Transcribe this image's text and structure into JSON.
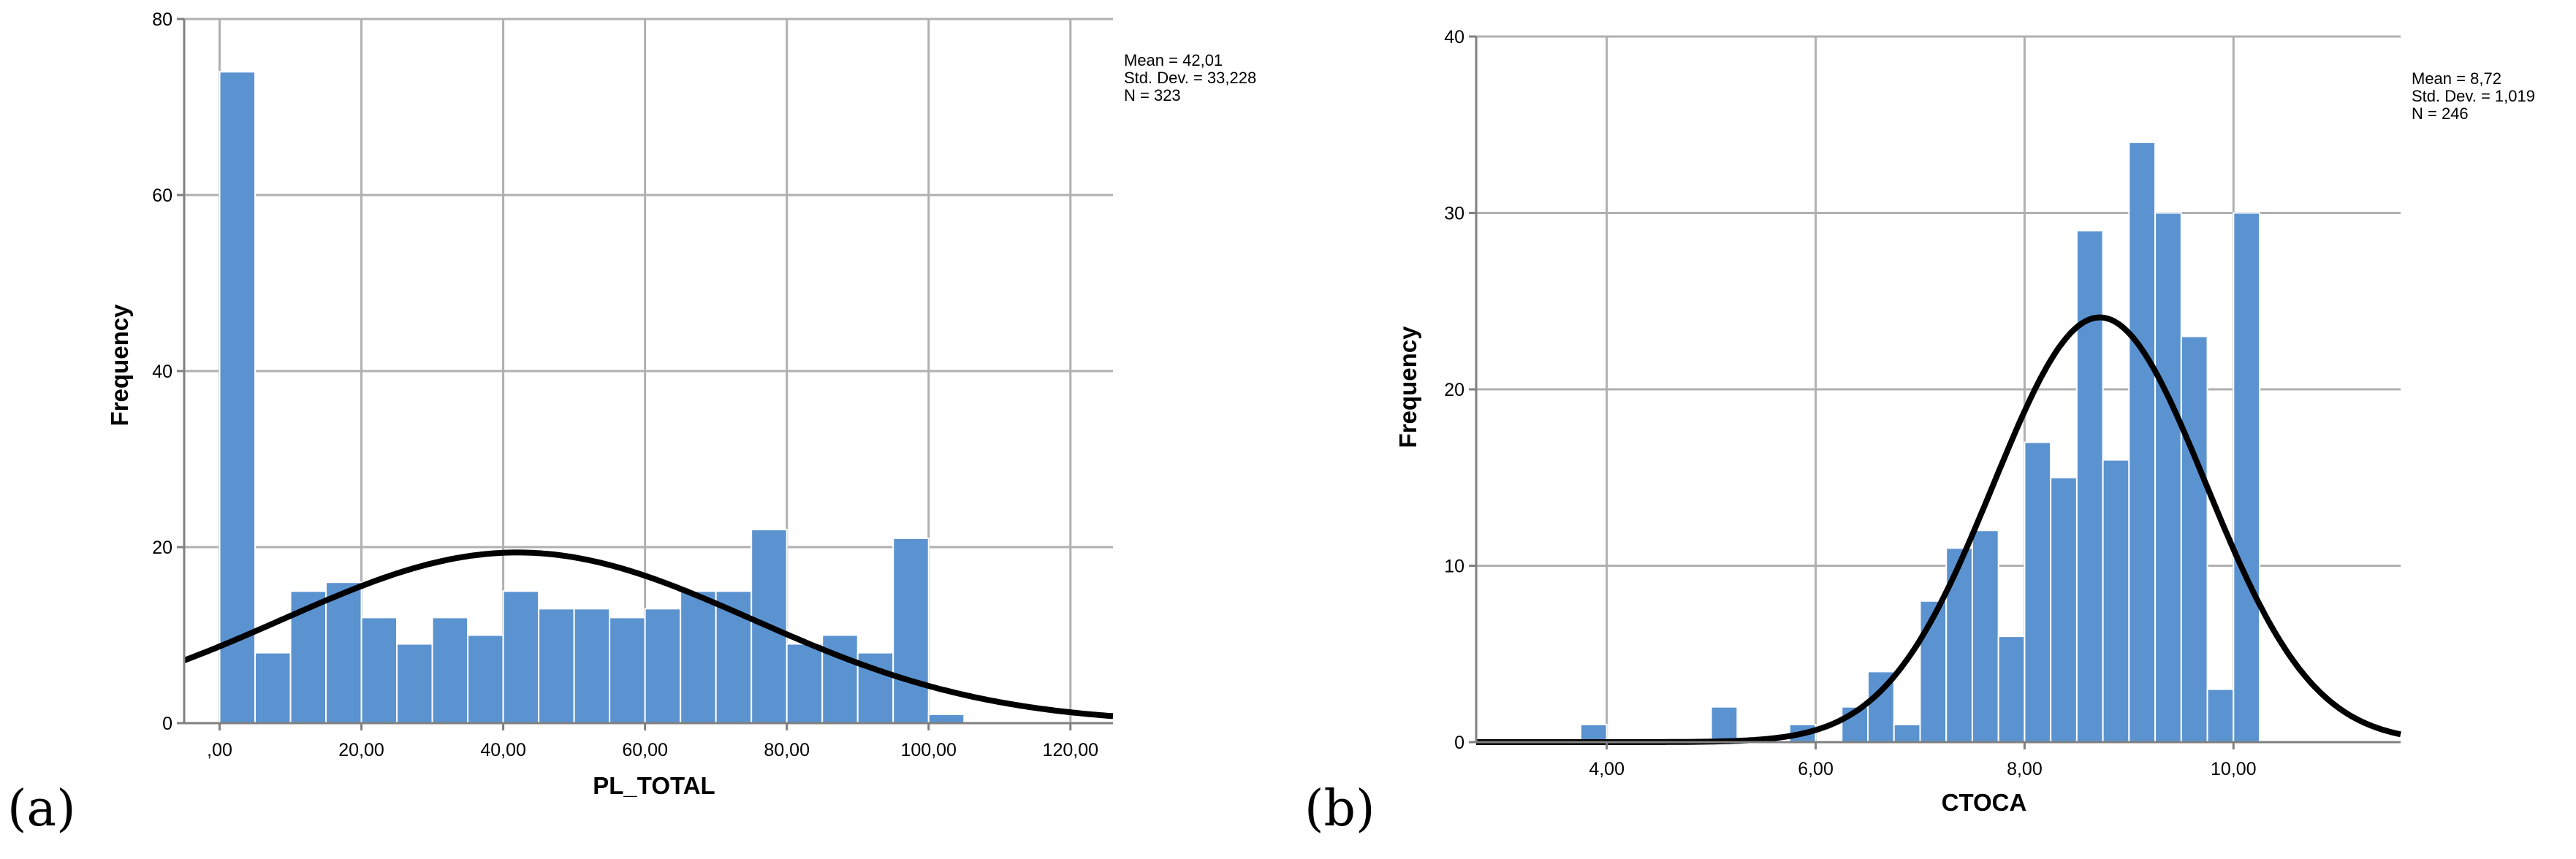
{
  "figure": {
    "panels": [
      {
        "panel_label": "(a)",
        "stats": [
          "Mean = 42,01",
          "Std. Dev. = 33,228",
          "N = 323"
        ],
        "chart_data": {
          "type": "bar",
          "subtype": "histogram-with-normal-curve",
          "xlabel": "PL_TOTAL",
          "ylabel": "Frequency",
          "xlim": [
            -5,
            126
          ],
          "ylim": [
            0,
            80
          ],
          "xticks": [
            0,
            20,
            40,
            60,
            80,
            100,
            120
          ],
          "xtick_labels": [
            ",00",
            "20,00",
            "40,00",
            "60,00",
            "80,00",
            "100,00",
            "120,00"
          ],
          "yticks": [
            0,
            20,
            40,
            60,
            80
          ],
          "ytick_labels": [
            "0",
            "20",
            "40",
            "60",
            "80"
          ],
          "bin_width": 5,
          "bins": [
            {
              "x": 0,
              "count": 74
            },
            {
              "x": 5,
              "count": 8
            },
            {
              "x": 10,
              "count": 15
            },
            {
              "x": 15,
              "count": 16
            },
            {
              "x": 20,
              "count": 12
            },
            {
              "x": 25,
              "count": 9
            },
            {
              "x": 30,
              "count": 12
            },
            {
              "x": 35,
              "count": 10
            },
            {
              "x": 40,
              "count": 15
            },
            {
              "x": 45,
              "count": 13
            },
            {
              "x": 50,
              "count": 13
            },
            {
              "x": 55,
              "count": 12
            },
            {
              "x": 60,
              "count": 13
            },
            {
              "x": 65,
              "count": 15
            },
            {
              "x": 70,
              "count": 15
            },
            {
              "x": 75,
              "count": 22
            },
            {
              "x": 80,
              "count": 9
            },
            {
              "x": 85,
              "count": 10
            },
            {
              "x": 90,
              "count": 8
            },
            {
              "x": 95,
              "count": 21
            },
            {
              "x": 100,
              "count": 1
            }
          ],
          "normal_curve": {
            "mean": 42.01,
            "sd": 33.228,
            "n": 323
          },
          "grid": true,
          "bar_color": "#5b93d1",
          "curve_color": "#000000"
        }
      },
      {
        "panel_label": "(b)",
        "stats": [
          "Mean = 8,72",
          "Std. Dev. = 1,019",
          "N = 246"
        ],
        "chart_data": {
          "type": "bar",
          "subtype": "histogram-with-normal-curve",
          "xlabel": "CTOCA",
          "ylabel": "Frequency",
          "xlim": [
            2.75,
            11.6
          ],
          "ylim": [
            0,
            40
          ],
          "xticks": [
            4,
            6,
            8,
            10
          ],
          "xtick_labels": [
            "4,00",
            "6,00",
            "8,00",
            "10,00"
          ],
          "yticks": [
            0,
            10,
            20,
            30,
            40
          ],
          "ytick_labels": [
            "0",
            "10",
            "20",
            "30",
            "40"
          ],
          "bin_width": 0.25,
          "bins": [
            {
              "x": 3.75,
              "count": 1
            },
            {
              "x": 5.0,
              "count": 2
            },
            {
              "x": 5.75,
              "count": 1
            },
            {
              "x": 6.25,
              "count": 2
            },
            {
              "x": 6.5,
              "count": 4
            },
            {
              "x": 6.75,
              "count": 1
            },
            {
              "x": 7.0,
              "count": 8
            },
            {
              "x": 7.25,
              "count": 11
            },
            {
              "x": 7.5,
              "count": 12
            },
            {
              "x": 7.75,
              "count": 6
            },
            {
              "x": 8.0,
              "count": 17
            },
            {
              "x": 8.25,
              "count": 15
            },
            {
              "x": 8.5,
              "count": 29
            },
            {
              "x": 8.75,
              "count": 16
            },
            {
              "x": 9.0,
              "count": 34
            },
            {
              "x": 9.25,
              "count": 30
            },
            {
              "x": 9.5,
              "count": 23
            },
            {
              "x": 9.75,
              "count": 3
            },
            {
              "x": 10.0,
              "count": 30
            }
          ],
          "normal_curve": {
            "mean": 8.72,
            "sd": 1.019,
            "n": 246
          },
          "grid": true,
          "bar_color": "#5b93d1",
          "curve_color": "#000000"
        }
      }
    ]
  }
}
